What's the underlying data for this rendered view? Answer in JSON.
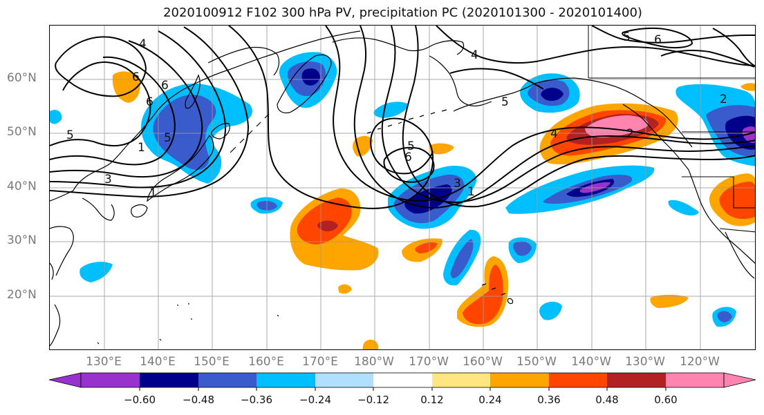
{
  "title": "2020100912 F102 300 hPa PV, precipitation PC (2020101300 - 2020101400)",
  "lat_ticks": [
    "60°N",
    "50°N",
    "40°N",
    "30°N",
    "20°N"
  ],
  "lon_ticks": [
    "130°E",
    "140°E",
    "150°E",
    "160°E",
    "170°E",
    "180°W",
    "170°W",
    "160°W",
    "150°W",
    "140°W",
    "130°W",
    "120°W"
  ],
  "contour_labels": [
    "4",
    "6",
    "5",
    "6",
    "6",
    "5",
    "1",
    "4",
    "5",
    "5",
    "6",
    "2",
    "3",
    "1",
    "5",
    "6",
    "3",
    "1",
    "4",
    "2"
  ],
  "colorbar": {
    "tick_labels": [
      "−0.60",
      "−0.48",
      "−0.36",
      "−0.24",
      "−0.12",
      "0.12",
      "0.24",
      "0.36",
      "0.48",
      "0.60"
    ],
    "colors": [
      "#9932cc",
      "#00008b",
      "#3a5bcc",
      "#00bfff",
      "#b0e0ff",
      "#ffffff",
      "#ffe680",
      "#ffa500",
      "#ff4500",
      "#b22222",
      "#ff85b0"
    ]
  }
}
